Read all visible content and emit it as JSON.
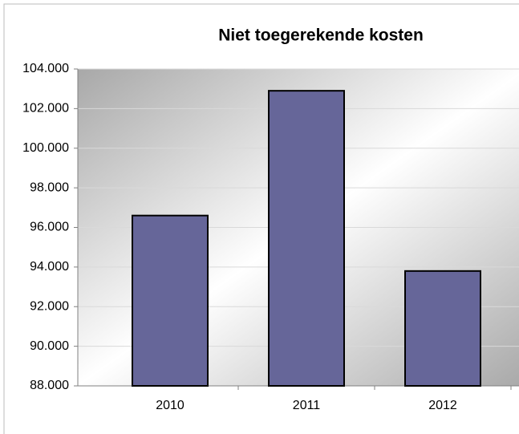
{
  "chart_data": {
    "type": "bar",
    "title": "Niet toegerekende kosten",
    "categories": [
      "2010",
      "2011",
      "2012"
    ],
    "values": [
      96600,
      102900,
      93800
    ],
    "color": "#666699",
    "ylim": [
      88000,
      104000
    ],
    "yticks": [
      {
        "value": 88000,
        "label": "88.000"
      },
      {
        "value": 90000,
        "label": "90.000"
      },
      {
        "value": 92000,
        "label": "92.000"
      },
      {
        "value": 94000,
        "label": "94.000"
      },
      {
        "value": 96000,
        "label": "96.000"
      },
      {
        "value": 98000,
        "label": "98.000"
      },
      {
        "value": 100000,
        "label": "100.000"
      },
      {
        "value": 102000,
        "label": "102.000"
      },
      {
        "value": 104000,
        "label": "104.000"
      }
    ],
    "grid": true
  }
}
